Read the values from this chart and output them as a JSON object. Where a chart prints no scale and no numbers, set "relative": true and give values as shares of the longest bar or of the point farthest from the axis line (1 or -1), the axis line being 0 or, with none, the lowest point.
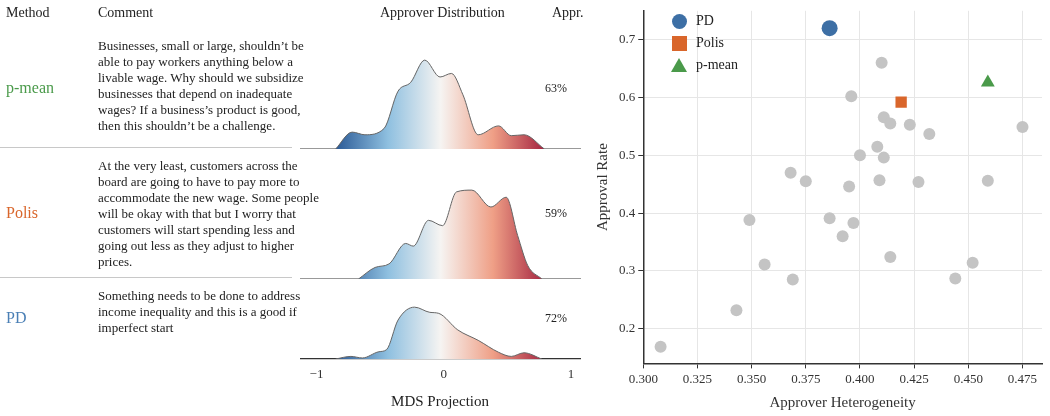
{
  "chart_data": [
    {
      "type": "other",
      "categories": [
        "p-mean",
        "Polis",
        "PD"
      ],
      "colors": [
        "#4a9a4a",
        "#d9662b",
        "#4a7fb5"
      ],
      "annotations": [
        "Method",
        "Comment",
        "Approver Distribution",
        "Appr.",
        "Businesses, small or large, shouldn’t be able to pay workers anything below a livable wage. Why should we subsidize businesses that depend on inadequate wages? If a business’s product is good, then this shouldn’t be a challenge.",
        "At the very least, customers across the board are going to have to pay more to accommodate the new wage. Some people will be okay with that but I worry that customers will start spending less and going out less as they adjust to higher prices.",
        "Something needs to be done to address income inequality and this is a good if imperfect start",
        "63%",
        "59%",
        "72%"
      ]
    },
    {
      "type": "area",
      "relative": true,
      "color": "#666666",
      "xlim": [
        -1.13,
        1.07
      ],
      "tick_labels": false,
      "x": [
        -0.85,
        -0.72,
        -0.62,
        -0.47,
        -0.36,
        -0.26,
        -0.15,
        -0.03,
        0.06,
        0.15,
        0.27,
        0.43,
        0.53,
        0.63,
        0.79
      ],
      "values": [
        0,
        0.19,
        0.16,
        0.23,
        0.65,
        0.75,
        1.0,
        0.81,
        0.85,
        0.61,
        0.16,
        0.26,
        0.15,
        0.16,
        0
      ]
    },
    {
      "type": "area",
      "relative": true,
      "color": "#666666",
      "xlim": [
        -1.13,
        1.07
      ],
      "tick_labels": false,
      "x": [
        -0.67,
        -0.54,
        -0.43,
        -0.3,
        -0.24,
        -0.12,
        -0.01,
        0.1,
        0.22,
        0.37,
        0.49,
        0.58,
        0.66,
        0.77
      ],
      "values": [
        0,
        0.13,
        0.17,
        0.4,
        0.37,
        0.66,
        0.6,
        0.98,
        1.0,
        0.81,
        0.92,
        0.49,
        0.15,
        0
      ]
    },
    {
      "type": "area",
      "relative": true,
      "color": "#666666",
      "xlim": [
        -1.13,
        1.07
      ],
      "xticks": [
        {
          "value": -1,
          "label": "−1"
        },
        0,
        1
      ],
      "xlabel": "MDS Projection",
      "x": [
        -0.85,
        -0.73,
        -0.64,
        -0.51,
        -0.45,
        -0.36,
        -0.23,
        -0.11,
        -0.04,
        0.11,
        0.27,
        0.43,
        0.53,
        0.63,
        0.77
      ],
      "values": [
        0,
        0.05,
        0.02,
        0.14,
        0.18,
        0.75,
        1.0,
        0.9,
        0.88,
        0.56,
        0.36,
        0.13,
        0.05,
        0.12,
        0
      ]
    },
    {
      "type": "scatter",
      "xlabel": "Approver Heterogeneity",
      "ylabel": "Approval Rate",
      "xlim": [
        0.3,
        0.484
      ],
      "ylim": [
        0.14,
        0.75
      ],
      "xticks": [
        {
          "value": 0.3,
          "label": "0.300"
        },
        {
          "value": 0.325,
          "label": "0.325"
        },
        {
          "value": 0.35,
          "label": "0.350"
        },
        {
          "value": 0.375,
          "label": "0.375"
        },
        {
          "value": 0.4,
          "label": "0.400"
        },
        {
          "value": 0.425,
          "label": "0.425"
        },
        {
          "value": 0.45,
          "label": "0.450"
        },
        {
          "value": 0.475,
          "label": "0.475"
        }
      ],
      "yticks": [
        0.2,
        0.3,
        0.4,
        0.5,
        0.6,
        0.7
      ],
      "grid": true,
      "legend": "top left",
      "series": [
        {
          "color": "#c4c4c4",
          "marker": "circle",
          "x": [
            0.41,
            0.396,
            0.411,
            0.414,
            0.423,
            0.432,
            0.475,
            0.408,
            0.4,
            0.411,
            0.368,
            0.375,
            0.395,
            0.409,
            0.427,
            0.459,
            0.349,
            0.386,
            0.397,
            0.392,
            0.414,
            0.356,
            0.369,
            0.444,
            0.452,
            0.343,
            0.308
          ],
          "values": [
            0.66,
            0.602,
            0.566,
            0.555,
            0.553,
            0.537,
            0.549,
            0.515,
            0.5,
            0.496,
            0.47,
            0.455,
            0.446,
            0.457,
            0.454,
            0.456,
            0.388,
            0.391,
            0.383,
            0.36,
            0.324,
            0.311,
            0.285,
            0.287,
            0.314,
            0.232,
            0.169
          ]
        },
        {
          "name": "PD",
          "color": "#3d6fa5",
          "marker": "circle",
          "x": [
            0.386
          ],
          "values": [
            0.72
          ]
        },
        {
          "name": "Polis",
          "color": "#d9662b",
          "marker": "square",
          "x": [
            0.419
          ],
          "values": [
            0.592
          ]
        },
        {
          "name": "p-mean",
          "color": "#4a9a4a",
          "marker": "triangle",
          "x": [
            0.459
          ],
          "values": [
            0.626
          ]
        }
      ]
    }
  ]
}
